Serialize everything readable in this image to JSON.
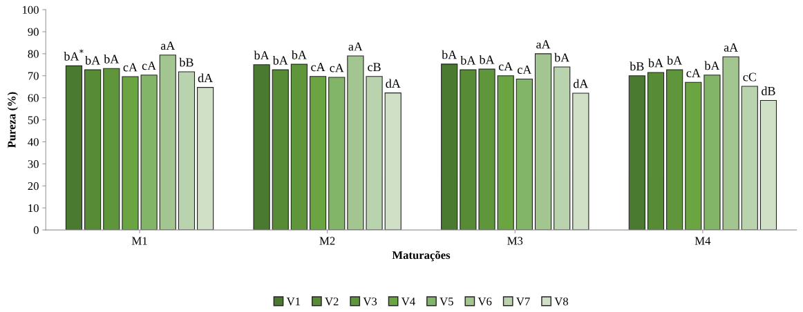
{
  "chart_data": {
    "type": "bar",
    "xlabel": "Maturações",
    "ylabel": "Pureza (%)",
    "categories": [
      "M1",
      "M2",
      "M3",
      "M4"
    ],
    "ylim": [
      0,
      100
    ],
    "yticks": [
      0,
      10,
      20,
      30,
      40,
      50,
      60,
      70,
      80,
      90,
      100
    ],
    "legend": "bottom",
    "grid": false,
    "series": [
      {
        "name": "V1",
        "color": "#4a7a2f",
        "values": [
          74.5,
          75,
          75.3,
          70
        ],
        "value_labels": [
          "bA$^{*}$",
          "bA",
          "bA",
          "bB"
        ]
      },
      {
        "name": "V2",
        "color": "#578b36",
        "values": [
          72.7,
          72.7,
          72.7,
          71.5
        ],
        "value_labels": [
          "bA",
          "bA",
          "bA",
          "bA"
        ]
      },
      {
        "name": "V3",
        "color": "#5f963b",
        "values": [
          73.3,
          75.2,
          73,
          72.7
        ],
        "value_labels": [
          "bA",
          "bA",
          "bA",
          "bA"
        ]
      },
      {
        "name": "V4",
        "color": "#6aa541",
        "values": [
          69.6,
          69.7,
          70,
          67
        ],
        "value_labels": [
          "cA",
          "cA",
          "cA",
          "cA"
        ]
      },
      {
        "name": "V5",
        "color": "#83b568",
        "values": [
          70.3,
          69.3,
          68.5,
          70.3
        ],
        "value_labels": [
          "cA",
          "cA",
          "cA",
          "bA"
        ]
      },
      {
        "name": "V6",
        "color": "#a3c58f",
        "values": [
          79.4,
          79,
          80,
          78.6
        ],
        "value_labels": [
          "aA",
          "aA",
          "aA",
          "aA"
        ]
      },
      {
        "name": "V7",
        "color": "#b8d3ad",
        "values": [
          71.8,
          69.7,
          74,
          65.2
        ],
        "value_labels": [
          "bB",
          "cB",
          "bA",
          "cC"
        ]
      },
      {
        "name": "V8",
        "color": "#d0e0c6",
        "values": [
          64.7,
          62.2,
          62.1,
          58.8
        ],
        "value_labels": [
          "dA",
          "dA",
          "dA",
          "dB"
        ]
      }
    ]
  }
}
